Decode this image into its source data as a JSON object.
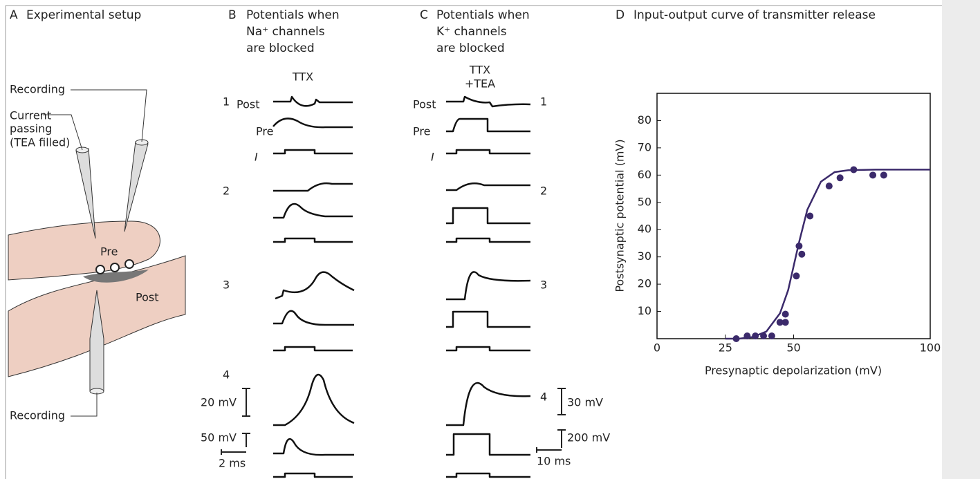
{
  "panel_a": {
    "letter": "A",
    "title": "Experimental setup",
    "recording_top": "Recording",
    "current_passing": [
      "Current",
      "passing",
      "(TEA filled)"
    ],
    "pre": "Pre",
    "post": "Post",
    "recording_bottom": "Recording"
  },
  "panel_b": {
    "letter": "B",
    "title": [
      "Potentials when",
      "Na⁺ channels",
      "are blocked"
    ],
    "condition": [
      "TTX"
    ],
    "rows": [
      "1",
      "2",
      "3",
      "4"
    ],
    "post": "Post",
    "pre": "Pre",
    "current": "I",
    "scale_post": "20 mV",
    "scale_pre": "50 mV",
    "scale_time": "2 ms"
  },
  "panel_c": {
    "letter": "C",
    "title": [
      "Potentials when",
      "K⁺ channels",
      "are blocked"
    ],
    "condition": [
      "TTX",
      "+TEA"
    ],
    "rows": [
      "1",
      "2",
      "3",
      "4"
    ],
    "post": "Post",
    "pre": "Pre",
    "current": "I",
    "scale_post": "30 mV",
    "scale_pre": "200 mV",
    "scale_time": "10 ms"
  },
  "chart_data": {
    "type": "scatter",
    "panel_letter": "D",
    "title": "Input-output curve of transmitter release",
    "x_label": "Presynaptic depolarization (mV)",
    "y_label": "Postsynaptic potential (mV)",
    "xlim": [
      0,
      100
    ],
    "ylim": [
      0,
      90
    ],
    "xticks": [
      0,
      25,
      50,
      100
    ],
    "yticks": [
      10,
      20,
      30,
      40,
      50,
      60,
      70,
      80
    ],
    "series": [
      {
        "type": "scatter",
        "color": "#3b2a6b",
        "x": [
          29,
          33,
          36,
          39,
          42,
          45,
          47,
          47,
          51,
          52,
          53,
          56,
          63,
          67,
          72,
          79,
          83
        ],
        "values": [
          0,
          1,
          1,
          1,
          1,
          6,
          6,
          9,
          23,
          34,
          31,
          45,
          56,
          59,
          62,
          60,
          60
        ]
      },
      {
        "type": "line",
        "color": "#3b2a6b",
        "x": [
          25,
          30,
          35,
          40,
          45,
          48,
          50,
          52,
          55,
          60,
          65,
          70,
          80,
          100
        ],
        "values": [
          0,
          0,
          0.6,
          2.6,
          9.3,
          17.8,
          26.6,
          35.4,
          47.3,
          57.6,
          61.1,
          61.8,
          62,
          62
        ]
      }
    ]
  }
}
